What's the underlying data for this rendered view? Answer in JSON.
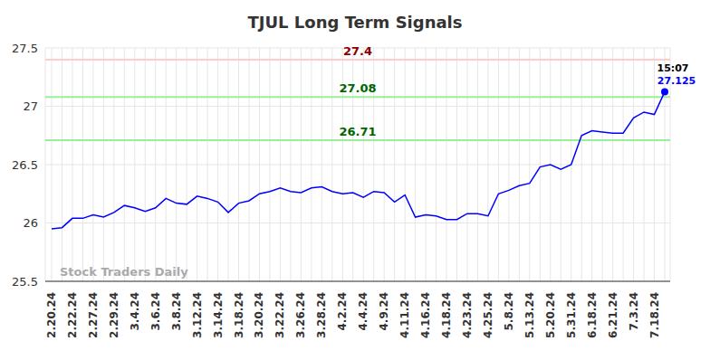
{
  "chart_data": {
    "type": "line",
    "title": "TJUL Long Term Signals",
    "watermark": "Stock Traders Daily",
    "last_time": "15:07",
    "color": "#0000ff",
    "grid": true,
    "categories": [
      "2.20.24",
      null,
      "2.22.24",
      null,
      "2.27.24",
      null,
      "2.29.24",
      null,
      "3.4.24",
      null,
      "3.6.24",
      null,
      "3.8.24",
      null,
      "3.12.24",
      null,
      "3.14.24",
      null,
      "3.18.24",
      null,
      "3.20.24",
      null,
      "3.22.24",
      null,
      "3.26.24",
      null,
      "3.28.24",
      null,
      "4.2.24",
      null,
      "4.4.24",
      null,
      "4.9.24",
      null,
      "4.11.24",
      null,
      "4.16.24",
      null,
      "4.18.24",
      null,
      "4.23.24",
      null,
      "4.25.24",
      null,
      "5.8.24",
      null,
      "5.13.24",
      null,
      "5.20.24",
      null,
      "5.31.24",
      null,
      "6.18.24",
      null,
      "6.21.24",
      null,
      "7.3.24",
      null,
      "7.18.24",
      null
    ],
    "values": [
      25.95,
      25.96,
      26.04,
      26.04,
      26.07,
      26.05,
      26.09,
      26.15,
      26.13,
      26.1,
      26.13,
      26.21,
      26.17,
      26.16,
      26.23,
      26.21,
      26.18,
      26.09,
      26.17,
      26.19,
      26.25,
      26.27,
      26.3,
      26.27,
      26.26,
      26.3,
      26.31,
      26.27,
      26.25,
      26.26,
      26.22,
      26.27,
      26.26,
      26.18,
      26.24,
      26.05,
      26.07,
      26.06,
      26.03,
      26.03,
      26.08,
      26.08,
      26.06,
      26.25,
      26.28,
      26.32,
      26.34,
      26.48,
      26.5,
      26.46,
      26.5,
      26.75,
      26.79,
      26.78,
      26.77,
      26.77,
      26.9,
      26.95,
      26.93,
      27.125
    ],
    "horizontal_lines": [
      {
        "value": 27.4,
        "color": "#ffcccc"
      },
      {
        "value": 27.08,
        "color": "#99ee99"
      },
      {
        "value": 26.71,
        "color": "#99ee99"
      }
    ],
    "ylim": [
      25.5,
      27.5
    ],
    "yticks": [
      25.5,
      26,
      26.5,
      27,
      27.5
    ]
  }
}
